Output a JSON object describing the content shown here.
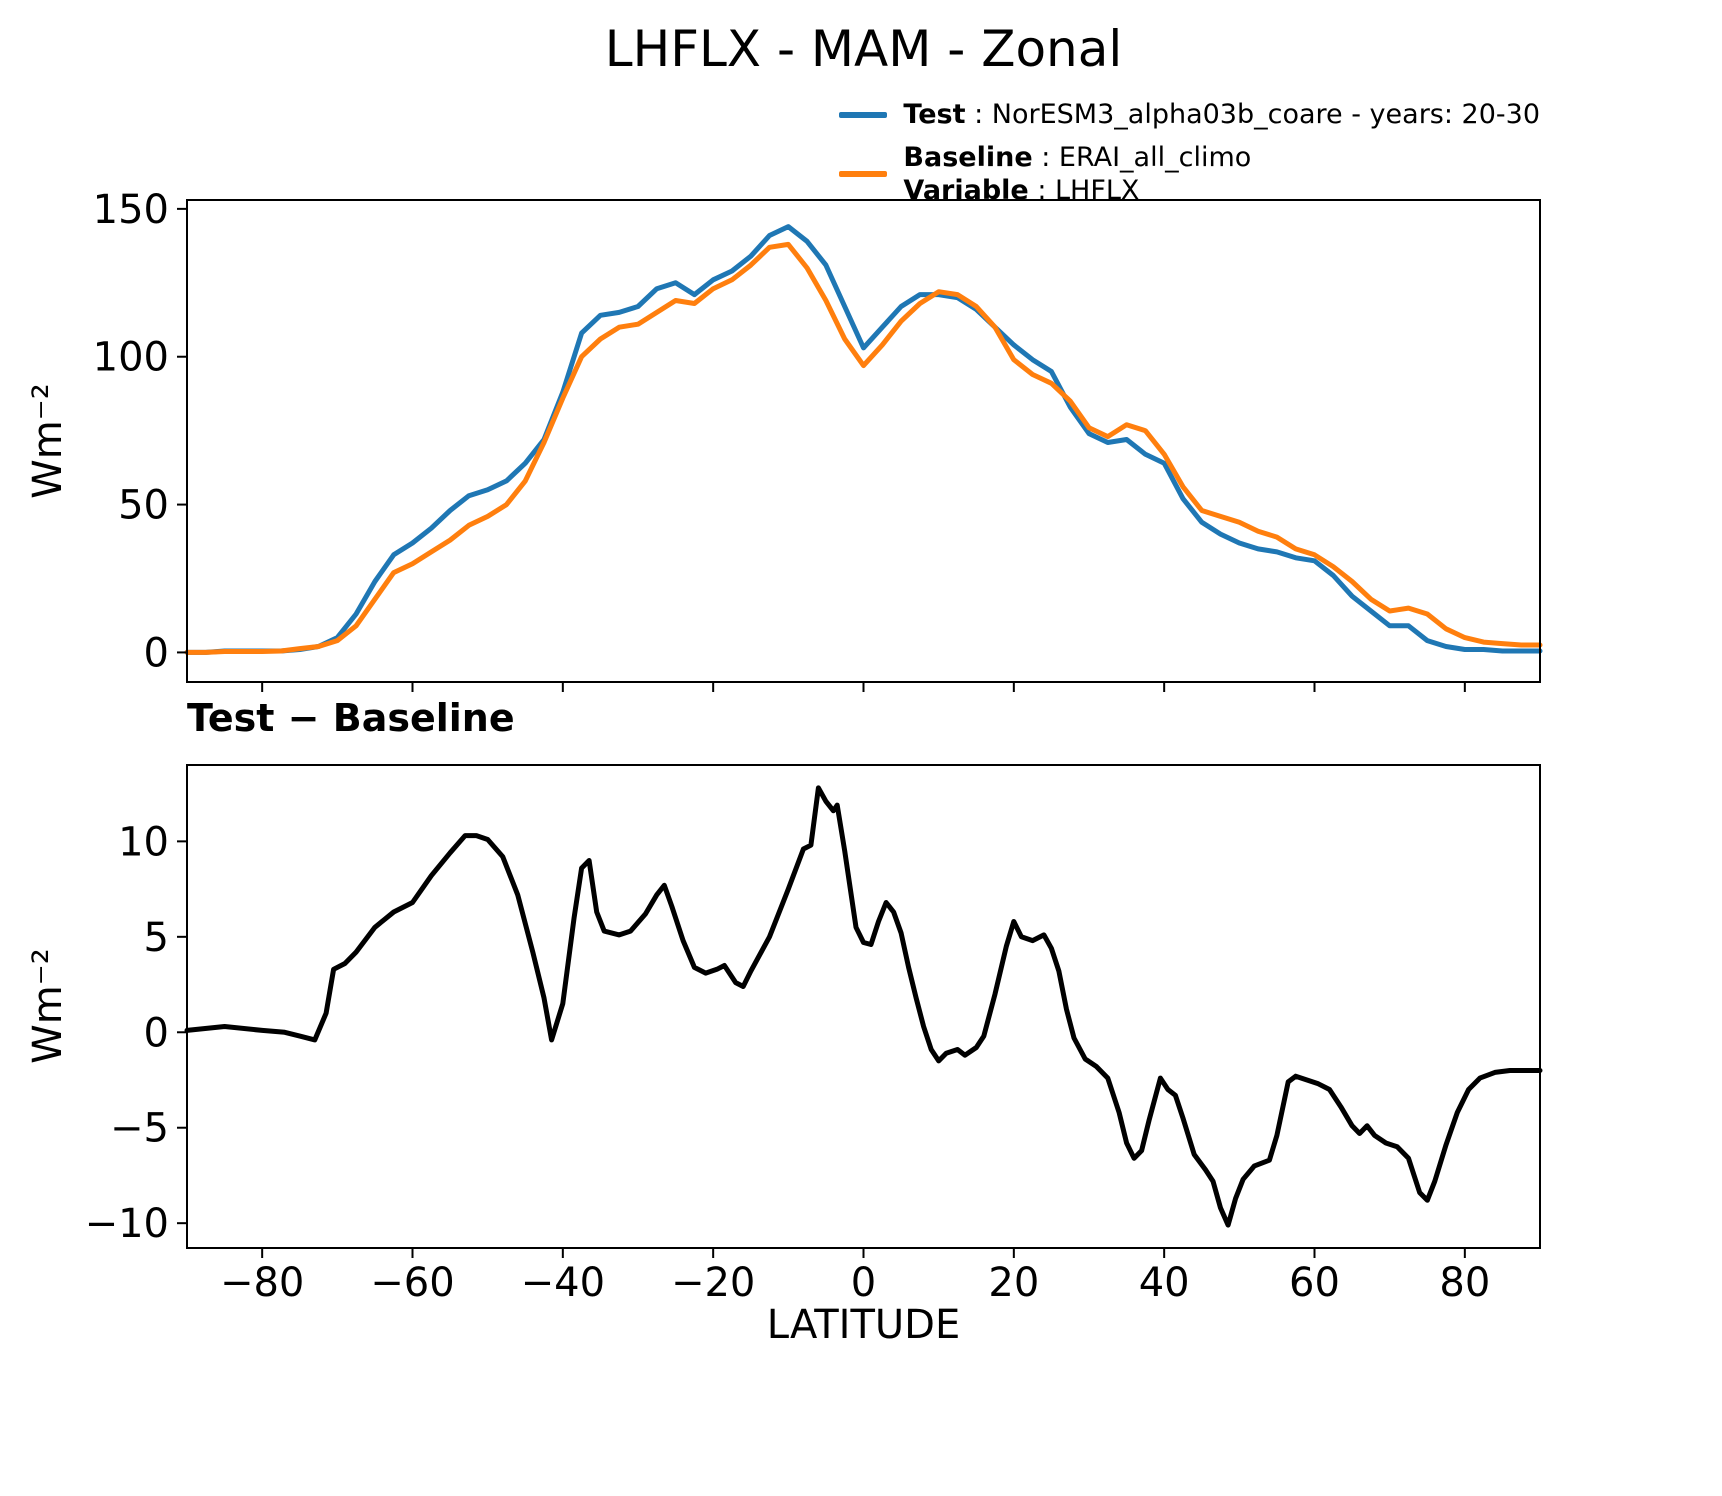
{
  "title": "LHFLX - MAM - Zonal",
  "colors": {
    "test": "#1f77b4",
    "baseline": "#ff7f0e",
    "diff": "#000000",
    "axis": "#000000"
  },
  "legend": {
    "position": "outside-top-right",
    "items": [
      {
        "color": "#1f77b4",
        "lines": [
          {
            "name": "Test",
            "rest": " : NorESM3_alpha03b_coare - years: 20-30"
          }
        ]
      },
      {
        "color": "#ff7f0e",
        "lines": [
          {
            "name": "Baseline",
            "rest": " : ERAI_all_climo"
          },
          {
            "name": "Variable",
            "rest": " : LHFLX"
          }
        ]
      }
    ]
  },
  "chart_data": [
    {
      "type": "line",
      "panel": "top",
      "title": "",
      "ylabel": "Wm⁻²",
      "xlabel": "",
      "xlim": [
        -90,
        90
      ],
      "ylim": [
        -10,
        153
      ],
      "grid": false,
      "yticks": [
        0,
        50,
        100,
        150
      ],
      "xticks": [
        -80,
        -60,
        -40,
        -20,
        0,
        20,
        40,
        60,
        80
      ],
      "x": [
        -90,
        -87.5,
        -85,
        -82.5,
        -80,
        -77.5,
        -75,
        -72.5,
        -70,
        -67.5,
        -65,
        -62.5,
        -60,
        -57.5,
        -55,
        -52.5,
        -50,
        -47.5,
        -45,
        -42.5,
        -40,
        -37.5,
        -35,
        -32.5,
        -30,
        -27.5,
        -25,
        -22.5,
        -20,
        -17.5,
        -15,
        -12.5,
        -10,
        -7.5,
        -5,
        -2.5,
        0,
        2.5,
        5,
        7.5,
        10,
        12.5,
        15,
        17.5,
        20,
        22.5,
        25,
        27.5,
        30,
        32.5,
        35,
        37.5,
        40,
        42.5,
        45,
        47.5,
        50,
        52.5,
        55,
        57.5,
        60,
        62.5,
        65,
        67.5,
        70,
        72.5,
        75,
        77.5,
        80,
        82.5,
        85,
        87.5,
        90
      ],
      "series": [
        {
          "name": "Test",
          "color": "#1f77b4",
          "values": [
            0,
            0,
            0.5,
            0.5,
            0.5,
            0.5,
            1,
            2,
            5,
            13,
            24,
            33,
            37,
            42,
            48,
            53,
            55,
            58,
            64,
            72,
            88,
            108,
            114,
            115,
            117,
            123,
            125,
            121,
            126,
            129,
            134,
            141,
            144,
            139,
            131,
            117,
            103,
            110,
            117,
            121,
            121,
            120,
            116,
            110,
            104,
            99,
            95,
            83,
            74,
            71,
            72,
            67,
            64,
            52,
            44,
            40,
            37,
            35,
            34,
            32,
            31,
            26,
            19,
            14,
            9,
            9,
            4,
            2,
            1,
            1,
            0.5,
            0.5,
            0.5
          ]
        },
        {
          "name": "Baseline",
          "color": "#ff7f0e",
          "values": [
            0,
            0,
            0.3,
            0.3,
            0.3,
            0.5,
            1.3,
            2,
            4,
            9,
            18,
            27,
            30,
            34,
            38,
            43,
            46,
            50,
            58,
            71,
            86,
            100,
            106,
            110,
            111,
            115,
            119,
            118,
            123,
            126,
            131,
            137,
            138,
            130,
            119,
            106,
            97,
            104,
            112,
            118,
            122,
            121,
            117,
            110,
            99,
            94,
            91,
            85,
            76,
            73,
            77,
            75,
            67,
            56,
            48,
            46,
            44,
            41,
            39,
            35,
            33,
            29,
            24,
            18,
            14,
            15,
            13,
            8,
            5,
            3.5,
            3,
            2.5,
            2.5
          ]
        }
      ]
    },
    {
      "type": "line",
      "panel": "bottom",
      "title": "Test − Baseline",
      "ylabel": "Wm⁻²",
      "xlabel": "LATITUDE",
      "xlim": [
        -90,
        90
      ],
      "ylim": [
        -11.3,
        14
      ],
      "grid": false,
      "yticks": [
        -10,
        -5,
        0,
        5,
        10
      ],
      "xticks": [
        -80,
        -60,
        -40,
        -20,
        0,
        20,
        40,
        60,
        80
      ],
      "x": [
        -90,
        -85,
        -80,
        -77,
        -75,
        -73,
        -71.5,
        -70.5,
        -69,
        -67.5,
        -65,
        -62.5,
        -60,
        -57.5,
        -55,
        -53,
        -51.5,
        -50,
        -48,
        -46,
        -44,
        -42.5,
        -41.5,
        -40,
        -38.5,
        -37.5,
        -36.5,
        -35.5,
        -34.5,
        -32.5,
        -31,
        -29,
        -27.5,
        -26.5,
        -25.5,
        -24,
        -22.5,
        -21,
        -19.5,
        -18.5,
        -17,
        -16,
        -15,
        -12.5,
        -10,
        -8,
        -7,
        -6,
        -5,
        -4,
        -3.5,
        -2.5,
        -1,
        0,
        1,
        2,
        3,
        4,
        5,
        6,
        7,
        8,
        9,
        10,
        11,
        12.5,
        13.5,
        15,
        16,
        17.5,
        19,
        20,
        21,
        22.5,
        24,
        25,
        26,
        27,
        28,
        29.5,
        31,
        32.5,
        34,
        35,
        36,
        37,
        38,
        39.5,
        40.5,
        41.5,
        42.5,
        44,
        45.5,
        46.5,
        47.5,
        48.5,
        49.5,
        50.5,
        52,
        54,
        55,
        56.5,
        57.5,
        59,
        60.5,
        62,
        63.5,
        65,
        66,
        67,
        68,
        69.5,
        71,
        72.5,
        74,
        75,
        76,
        77.5,
        79,
        80.5,
        82,
        84,
        86,
        88,
        90
      ],
      "series": [
        {
          "name": "Test − Baseline",
          "color": "#000000",
          "values": [
            0.1,
            0.3,
            0.1,
            0,
            -0.2,
            -0.4,
            1,
            3.3,
            3.6,
            4.2,
            5.5,
            6.3,
            6.8,
            8.2,
            9.4,
            10.3,
            10.3,
            10.1,
            9.2,
            7.2,
            4.2,
            1.8,
            -0.4,
            1.5,
            6,
            8.6,
            9,
            6.3,
            5.3,
            5.1,
            5.3,
            6.2,
            7.2,
            7.7,
            6.6,
            4.8,
            3.4,
            3.1,
            3.3,
            3.5,
            2.6,
            2.4,
            3.2,
            5,
            7.5,
            9.6,
            9.8,
            12.8,
            12.1,
            11.6,
            11.9,
            9.5,
            5.5,
            4.7,
            4.6,
            5.8,
            6.8,
            6.3,
            5.2,
            3.4,
            1.8,
            0.3,
            -0.9,
            -1.5,
            -1.1,
            -0.9,
            -1.2,
            -0.8,
            -0.2,
            2,
            4.5,
            5.8,
            5,
            4.8,
            5.1,
            4.4,
            3.2,
            1.2,
            -0.3,
            -1.4,
            -1.8,
            -2.4,
            -4.2,
            -5.8,
            -6.6,
            -6.2,
            -4.6,
            -2.4,
            -3,
            -3.3,
            -4.5,
            -6.4,
            -7.2,
            -7.8,
            -9.2,
            -10.1,
            -8.7,
            -7.7,
            -7,
            -6.7,
            -5.4,
            -2.6,
            -2.3,
            -2.5,
            -2.7,
            -3,
            -3.9,
            -4.9,
            -5.3,
            -4.9,
            -5.4,
            -5.8,
            -6,
            -6.6,
            -8.4,
            -8.8,
            -7.8,
            -5.9,
            -4.2,
            -3,
            -2.4,
            -2.1,
            -2,
            -2,
            -2
          ]
        }
      ]
    }
  ]
}
